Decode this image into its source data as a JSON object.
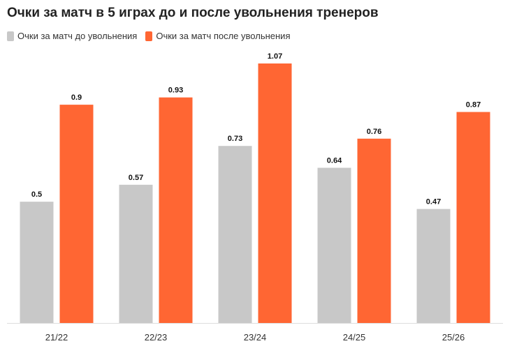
{
  "title": "Очки за матч в 5 играх до и после увольнения тренеров",
  "chart_data": {
    "type": "bar",
    "title": "Очки за матч в 5 играх до и после увольнения тренеров",
    "categories": [
      "21/22",
      "22/23",
      "23/24",
      "24/25",
      "25/26"
    ],
    "series": [
      {
        "name": "Очки за матч до увольнения",
        "values": [
          0.5,
          0.57,
          0.73,
          0.64,
          0.47
        ],
        "color": "#c8c8c8"
      },
      {
        "name": "Очки за матч после увольнения",
        "values": [
          0.9,
          0.93,
          1.07,
          0.76,
          0.87
        ],
        "color": "#ff6633"
      }
    ],
    "ylim": [
      0,
      1.07
    ],
    "grid": false,
    "legend": "top-left",
    "data_labels": true
  }
}
